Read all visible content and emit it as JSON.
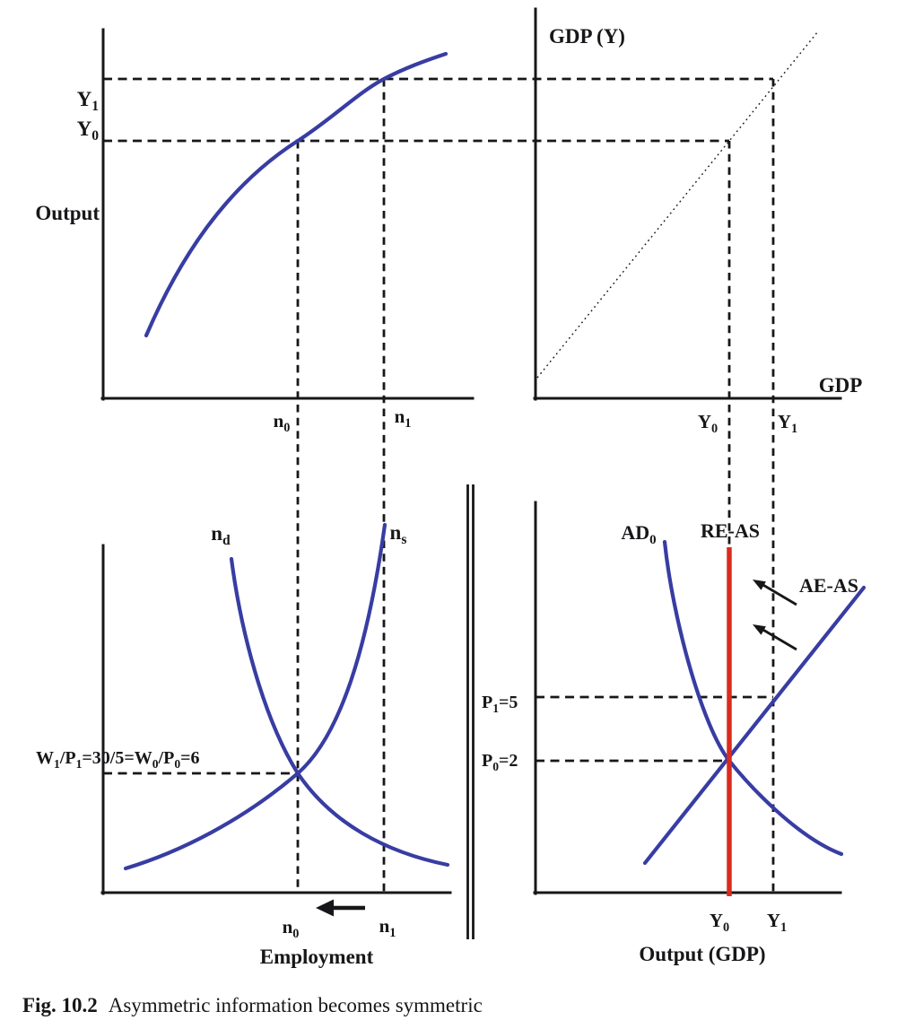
{
  "caption": {
    "label": "Fig. 10.2",
    "text": "Asymmetric information becomes symmetric"
  },
  "colors": {
    "ink": "#17171a",
    "curve_blue": "#383da3",
    "re_as_red": "#db2b1c"
  },
  "top_left": {
    "ylabel": "Output",
    "y1_tick": [
      {
        "t": "Y"
      },
      {
        "t": "1",
        "sub": true
      }
    ],
    "y0_tick": [
      {
        "t": "Y"
      },
      {
        "t": "0",
        "sub": true
      }
    ],
    "n0_tick": [
      {
        "t": "n"
      },
      {
        "t": "0",
        "sub": true
      }
    ],
    "n1_tick": [
      {
        "t": "n"
      },
      {
        "t": "1",
        "sub": true
      }
    ]
  },
  "top_right": {
    "ylabel": "GDP (Y)",
    "xlabel": "GDP",
    "y0_tick": [
      {
        "t": "Y"
      },
      {
        "t": "0",
        "sub": true
      }
    ],
    "y1_tick": [
      {
        "t": "Y"
      },
      {
        "t": "1",
        "sub": true
      }
    ]
  },
  "bottom_left": {
    "labor_demand_label": [
      {
        "t": "n"
      },
      {
        "t": "d",
        "sub": true
      }
    ],
    "labor_supply_label": [
      {
        "t": "n"
      },
      {
        "t": "s",
        "sub": true
      }
    ],
    "real_wage_label": [
      {
        "t": "W"
      },
      {
        "t": "1",
        "sub": true
      },
      {
        "t": "/P"
      },
      {
        "t": "1",
        "sub": true
      },
      {
        "t": "=30/5=W"
      },
      {
        "t": "0",
        "sub": true
      },
      {
        "t": "/P"
      },
      {
        "t": "0",
        "sub": true
      },
      {
        "t": "=6"
      }
    ],
    "n0_tick": [
      {
        "t": "n"
      },
      {
        "t": "0",
        "sub": true
      }
    ],
    "n1_tick": [
      {
        "t": "n"
      },
      {
        "t": "1",
        "sub": true
      }
    ],
    "xlabel": "Employment"
  },
  "bottom_right": {
    "ad_label": [
      {
        "t": "AD"
      },
      {
        "t": "0",
        "sub": true
      }
    ],
    "re_as_label": "RE-AS",
    "ae_as_label": "AE-AS",
    "p1_label": [
      {
        "t": "P"
      },
      {
        "t": "1",
        "sub": true
      },
      {
        "t": "=5"
      }
    ],
    "p0_label": [
      {
        "t": "P"
      },
      {
        "t": "0",
        "sub": true
      },
      {
        "t": "=2"
      }
    ],
    "y0_tick": [
      {
        "t": "Y"
      },
      {
        "t": "0",
        "sub": true
      }
    ],
    "y1_tick": [
      {
        "t": "Y"
      },
      {
        "t": "1",
        "sub": true
      }
    ],
    "xlabel": "Output (GDP)"
  }
}
